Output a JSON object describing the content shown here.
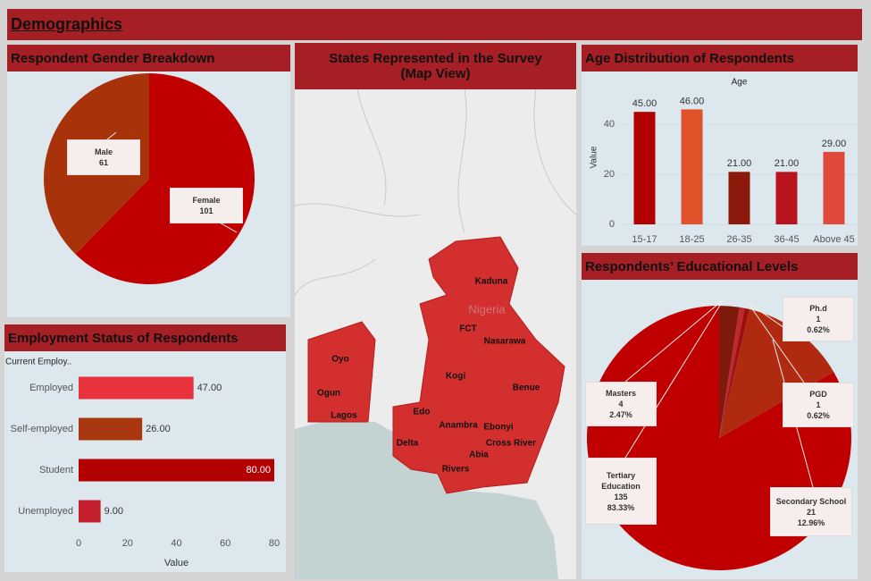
{
  "title": "Demographics",
  "chart_data": [
    {
      "type": "pie",
      "title": "Respondent Gender Breakdown",
      "categories": [
        "Female",
        "Male"
      ],
      "values": [
        101,
        61
      ],
      "colors": [
        "#c00000",
        "#a8320a"
      ]
    },
    {
      "type": "map",
      "title": "States Represented in the Survey (Map View)",
      "country": "Nigeria",
      "states": [
        "Kaduna",
        "FCT",
        "Nasarawa",
        "Oyo",
        "Ogun",
        "Kogi",
        "Benue",
        "Lagos",
        "Edo",
        "Anambra",
        "Ebonyi",
        "Delta",
        "Cross River",
        "Abia",
        "Rivers"
      ],
      "color": "#d32f2f"
    },
    {
      "type": "bar",
      "orientation": "horizontal",
      "title": "Employment Status of Respondents",
      "category_header": "Current Employ..",
      "x_label": "Value",
      "categories": [
        "Employed",
        "Self-employed",
        "Student",
        "Unemployed"
      ],
      "values": [
        47,
        26,
        80,
        9
      ],
      "value_labels": [
        "47.00",
        "26.00",
        "80.00",
        "9.00"
      ],
      "colors": [
        "#e8323c",
        "#a8360e",
        "#b30000",
        "#c4202e"
      ],
      "xlim": [
        0,
        80
      ],
      "xticks": [
        0,
        20,
        40,
        60,
        80
      ]
    },
    {
      "type": "bar",
      "orientation": "vertical",
      "title": "Age Distribution of Respondents",
      "category_header": "Age",
      "y_label": "Value",
      "categories": [
        "15-17",
        "18-25",
        "26-35",
        "36-45",
        "Above 45"
      ],
      "values": [
        45,
        46,
        21,
        21,
        29
      ],
      "value_labels": [
        "45.00",
        "46.00",
        "21.00",
        "21.00",
        "29.00"
      ],
      "colors": [
        "#b30000",
        "#e0522a",
        "#8c1a0a",
        "#b8141e",
        "#e04a3c"
      ],
      "ylim": [
        0,
        54
      ],
      "yticks": [
        0,
        20,
        40
      ],
      "grid": true
    },
    {
      "type": "pie",
      "title": "Respondents’ Educational Levels",
      "categories": [
        "Masters",
        "Ph.d",
        "PGD",
        "Secondary School",
        "Tertiary Education"
      ],
      "values": [
        4,
        1,
        1,
        21,
        135
      ],
      "percent_labels": [
        "2.47%",
        "0.62%",
        "0.62%",
        "12.96%",
        "83.33%"
      ],
      "colors": [
        "#7e1a0c",
        "#c0282e",
        "#9b1010",
        "#b02a10",
        "#c00000"
      ]
    }
  ]
}
